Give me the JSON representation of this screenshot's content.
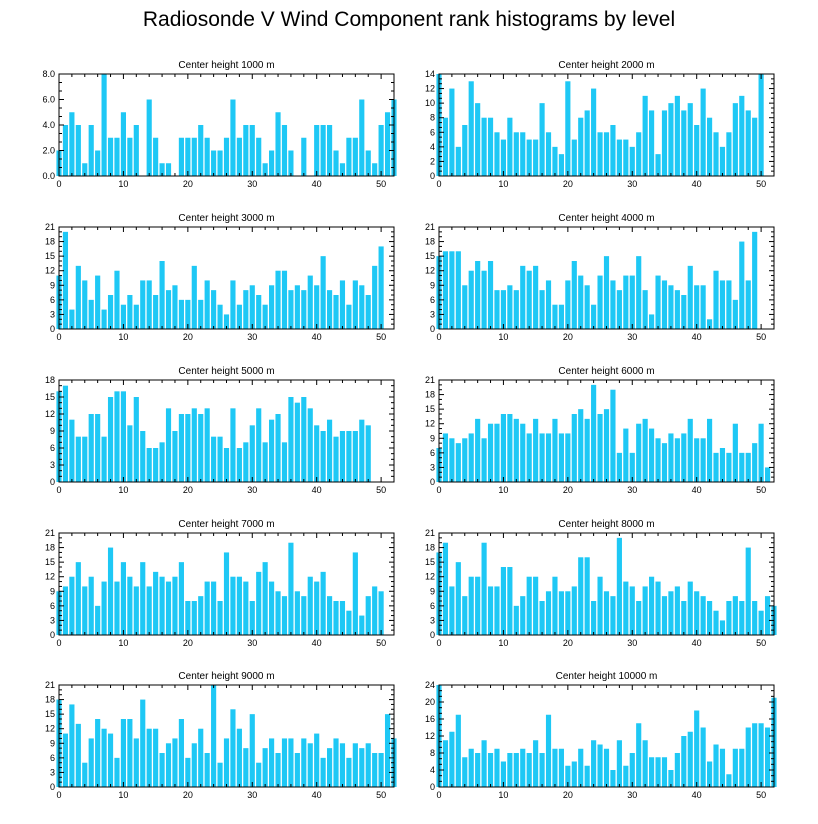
{
  "figure": {
    "title": "Radiosonde V Wind Component rank histograms by level"
  },
  "colors": {
    "bar": "#1ec8f5",
    "axis": "#000000",
    "background": "#ffffff"
  },
  "chart_data": [
    {
      "type": "bar",
      "title": "Center height 1000 m",
      "xlim": [
        0,
        52
      ],
      "ylim": [
        0,
        8
      ],
      "xticks": [
        0,
        10,
        20,
        30,
        40,
        50
      ],
      "yticks": [
        "0.0",
        "2.0",
        "4.0",
        "6.0",
        "8.0"
      ],
      "values": [
        2,
        4,
        5,
        4,
        1,
        4,
        2,
        8,
        3,
        3,
        5,
        3,
        4,
        0,
        6,
        3,
        1,
        1,
        0,
        3,
        3,
        3,
        4,
        3,
        2,
        2,
        3,
        6,
        3,
        4,
        4,
        3,
        1,
        2,
        5,
        4,
        2,
        0,
        3,
        0,
        4,
        4,
        4,
        2,
        1,
        3,
        3,
        6,
        2,
        1,
        4,
        5,
        6
      ]
    },
    {
      "type": "bar",
      "title": "Center height 2000 m",
      "xlim": [
        0,
        52
      ],
      "ylim": [
        0,
        14
      ],
      "xticks": [
        0,
        10,
        20,
        30,
        40,
        50
      ],
      "yticks": [
        "0",
        "2",
        "4",
        "6",
        "8",
        "10",
        "12",
        "14"
      ],
      "values": [
        14,
        8,
        12,
        4,
        7,
        13,
        10,
        8,
        8,
        6,
        5,
        8,
        6,
        6,
        5,
        5,
        10,
        6,
        4,
        3,
        13,
        5,
        8,
        9,
        12,
        6,
        6,
        7,
        5,
        5,
        4,
        6,
        11,
        9,
        3,
        9,
        10,
        11,
        9,
        10,
        7,
        12,
        8,
        6,
        4,
        6,
        10,
        11,
        9,
        8,
        14
      ]
    },
    {
      "type": "bar",
      "title": "Center height 3000 m",
      "xlim": [
        0,
        52
      ],
      "ylim": [
        0,
        21
      ],
      "xticks": [
        0,
        10,
        20,
        30,
        40,
        50
      ],
      "yticks": [
        "0",
        "3",
        "6",
        "9",
        "12",
        "15",
        "18",
        "21"
      ],
      "values": [
        11,
        20,
        4,
        13,
        10,
        6,
        11,
        4,
        7,
        12,
        5,
        7,
        5,
        10,
        10,
        7,
        14,
        8,
        9,
        6,
        6,
        13,
        6,
        10,
        8,
        5,
        3,
        10,
        5,
        8,
        9,
        7,
        5,
        9,
        12,
        12,
        8,
        9,
        8,
        11,
        9,
        15,
        8,
        7,
        10,
        5,
        10,
        9,
        7,
        13,
        17
      ]
    },
    {
      "type": "bar",
      "title": "Center height 4000 m",
      "xlim": [
        0,
        52
      ],
      "ylim": [
        0,
        21
      ],
      "xticks": [
        0,
        10,
        20,
        30,
        40,
        50
      ],
      "yticks": [
        "0",
        "3",
        "6",
        "9",
        "12",
        "15",
        "18",
        "21"
      ],
      "values": [
        15,
        16,
        16,
        16,
        9,
        12,
        14,
        12,
        14,
        8,
        8,
        9,
        8,
        13,
        12,
        13,
        8,
        10,
        5,
        5,
        10,
        14,
        11,
        9,
        5,
        11,
        15,
        10,
        8,
        11,
        11,
        15,
        8,
        3,
        11,
        10,
        9,
        8,
        7,
        13,
        9,
        9,
        2,
        12,
        10,
        10,
        6,
        18,
        10,
        20
      ]
    },
    {
      "type": "bar",
      "title": "Center height 5000 m",
      "xlim": [
        0,
        52
      ],
      "ylim": [
        0,
        18
      ],
      "xticks": [
        0,
        10,
        20,
        30,
        40,
        50
      ],
      "yticks": [
        "0",
        "3",
        "6",
        "9",
        "12",
        "15",
        "18"
      ],
      "values": [
        16,
        17,
        11,
        8,
        8,
        12,
        12,
        8,
        15,
        16,
        16,
        10,
        15,
        9,
        6,
        6,
        7,
        13,
        9,
        12,
        12,
        13,
        12,
        13,
        8,
        8,
        6,
        13,
        6,
        7,
        10,
        13,
        7,
        11,
        12,
        7,
        15,
        14,
        15,
        13,
        10,
        9,
        11,
        8,
        9,
        9,
        9,
        11,
        10
      ]
    },
    {
      "type": "bar",
      "title": "Center height 6000 m",
      "xlim": [
        0,
        52
      ],
      "ylim": [
        0,
        21
      ],
      "xticks": [
        0,
        10,
        20,
        30,
        40,
        50
      ],
      "yticks": [
        "0",
        "3",
        "6",
        "9",
        "12",
        "15",
        "18",
        "21"
      ],
      "values": [
        7,
        10,
        9,
        8,
        9,
        10,
        13,
        9,
        12,
        12,
        14,
        14,
        13,
        12,
        10,
        13,
        10,
        10,
        13,
        10,
        10,
        14,
        15,
        13,
        20,
        14,
        15,
        19,
        6,
        11,
        6,
        12,
        13,
        11,
        9,
        8,
        10,
        9,
        10,
        13,
        9,
        9,
        13,
        6,
        7,
        6,
        12,
        6,
        6,
        8,
        12,
        3
      ]
    },
    {
      "type": "bar",
      "title": "Center height 7000 m",
      "xlim": [
        0,
        52
      ],
      "ylim": [
        0,
        21
      ],
      "xticks": [
        0,
        10,
        20,
        30,
        40,
        50
      ],
      "yticks": [
        "0",
        "3",
        "6",
        "9",
        "12",
        "15",
        "18",
        "21"
      ],
      "values": [
        9,
        10,
        12,
        15,
        10,
        12,
        6,
        11,
        18,
        11,
        15,
        12,
        10,
        15,
        10,
        13,
        12,
        11,
        12,
        15,
        7,
        7,
        8,
        11,
        11,
        7,
        17,
        12,
        12,
        11,
        7,
        13,
        15,
        11,
        9,
        8,
        19,
        9,
        8,
        12,
        11,
        13,
        8,
        7,
        7,
        5,
        17,
        4,
        8,
        10,
        9
      ]
    },
    {
      "type": "bar",
      "title": "Center height 8000 m",
      "xlim": [
        0,
        52
      ],
      "ylim": [
        0,
        21
      ],
      "xticks": [
        0,
        10,
        20,
        30,
        40,
        50
      ],
      "yticks": [
        "0",
        "3",
        "6",
        "9",
        "12",
        "15",
        "18",
        "21"
      ],
      "values": [
        17,
        19,
        10,
        15,
        8,
        12,
        12,
        19,
        10,
        10,
        14,
        14,
        6,
        8,
        12,
        12,
        7,
        9,
        12,
        9,
        9,
        10,
        16,
        16,
        7,
        12,
        9,
        8,
        20,
        11,
        10,
        7,
        10,
        12,
        11,
        8,
        9,
        10,
        7,
        11,
        9,
        8,
        7,
        5,
        3,
        7,
        8,
        7,
        18,
        7,
        5,
        8,
        6
      ]
    },
    {
      "type": "bar",
      "title": "Center height 9000 m",
      "xlim": [
        0,
        52
      ],
      "ylim": [
        0,
        21
      ],
      "xticks": [
        0,
        10,
        20,
        30,
        40,
        50
      ],
      "yticks": [
        "0",
        "3",
        "6",
        "9",
        "12",
        "15",
        "18",
        "21"
      ],
      "values": [
        18,
        11,
        17,
        13,
        5,
        10,
        14,
        12,
        11,
        6,
        14,
        14,
        10,
        18,
        12,
        12,
        7,
        9,
        10,
        14,
        6,
        9,
        12,
        7,
        21,
        5,
        10,
        16,
        12,
        8,
        15,
        5,
        8,
        10,
        7,
        10,
        10,
        7,
        10,
        9,
        11,
        6,
        8,
        10,
        9,
        6,
        9,
        8,
        9,
        7,
        7,
        15,
        10
      ]
    },
    {
      "type": "bar",
      "title": "Center height 10000 m",
      "xlim": [
        0,
        52
      ],
      "ylim": [
        0,
        24
      ],
      "xticks": [
        0,
        10,
        20,
        30,
        40,
        50
      ],
      "yticks": [
        "0",
        "4",
        "8",
        "12",
        "16",
        "20",
        "24"
      ],
      "values": [
        24,
        11,
        13,
        17,
        7,
        9,
        8,
        11,
        8,
        9,
        6,
        8,
        8,
        9,
        8,
        11,
        8,
        17,
        9,
        9,
        5,
        6,
        9,
        5,
        11,
        10,
        9,
        4,
        11,
        5,
        8,
        15,
        11,
        7,
        7,
        7,
        4,
        8,
        12,
        13,
        18,
        14,
        6,
        10,
        9,
        3,
        9,
        9,
        14,
        15,
        15,
        14,
        21
      ]
    }
  ]
}
